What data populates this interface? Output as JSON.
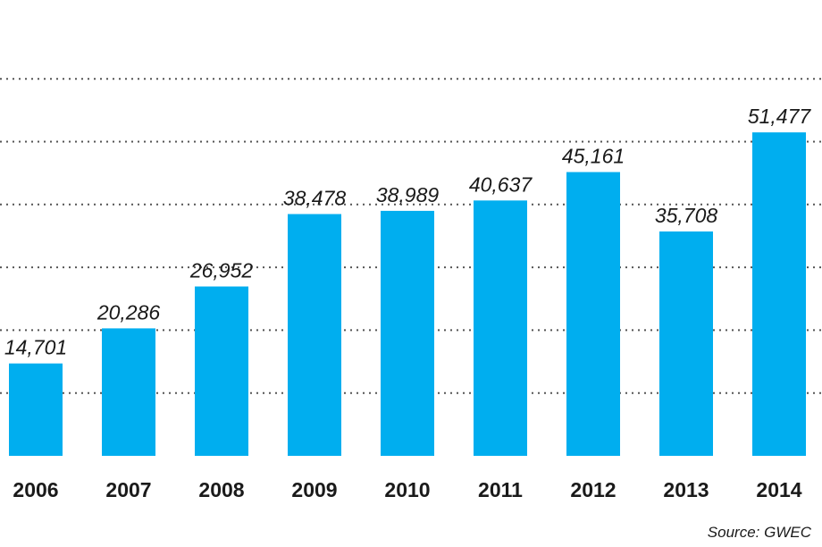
{
  "chart_data": {
    "type": "bar",
    "categories": [
      "2006",
      "2007",
      "2008",
      "2009",
      "2010",
      "2011",
      "2012",
      "2013",
      "2014"
    ],
    "values": [
      14701,
      20286,
      26952,
      38478,
      38989,
      40637,
      45161,
      35708,
      51477
    ],
    "value_labels": [
      "14,701",
      "20,286",
      "26,952",
      "38,478",
      "38,989",
      "40,637",
      "45,161",
      "35,708",
      "51,477"
    ],
    "ylim": [
      0,
      60000
    ],
    "grid": true,
    "bar_color": "#00aeef",
    "grid_color": "#555555"
  },
  "source": "Source: GWEC"
}
